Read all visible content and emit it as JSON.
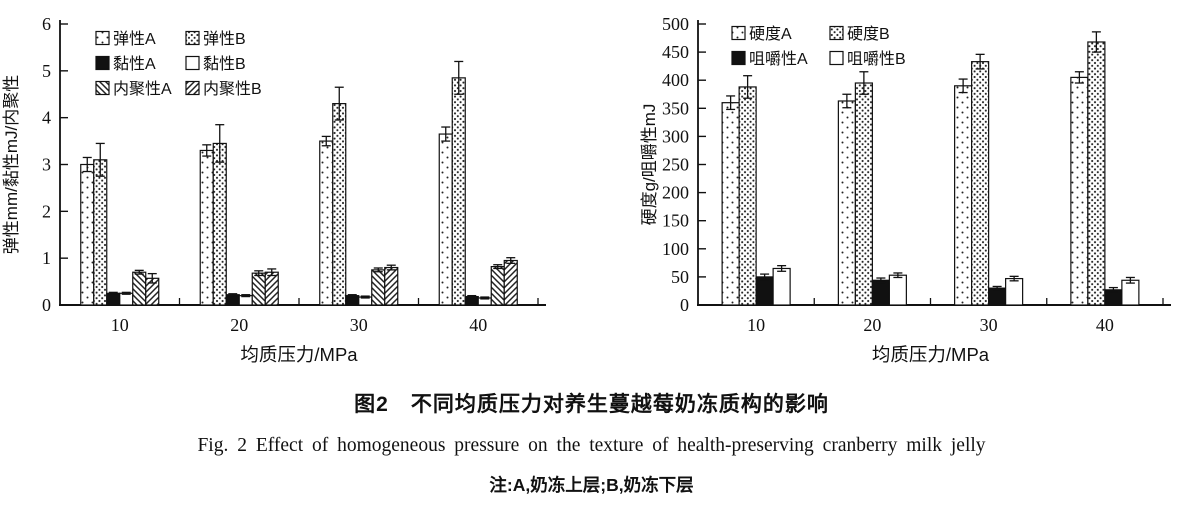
{
  "figure": {
    "caption_zh": "图2　不同均质压力对养生蔓越莓奶冻质构的影响",
    "caption_en": "Fig. 2  Effect of homogeneous pressure on the texture of health-preserving cranberry milk jelly",
    "note": "注:A,奶冻上层;B,奶冻下层"
  },
  "chart_data": [
    {
      "type": "bar",
      "title": "",
      "xlabel": "均质压力/MPa",
      "ylabel": "弹性mm/黏性mJ/内聚性",
      "categories": [
        "10",
        "20",
        "30",
        "40"
      ],
      "ylim": [
        0,
        6
      ],
      "ytick_step": 1,
      "grid": false,
      "legend_position": "upper-left-inside",
      "legend_columns": 2,
      "series": [
        {
          "name": "弹性A",
          "pattern": "sparse-dots",
          "values": [
            3.0,
            3.3,
            3.5,
            3.65
          ],
          "errors": [
            0.15,
            0.12,
            0.1,
            0.15
          ]
        },
        {
          "name": "弹性B",
          "pattern": "dense-dots",
          "values": [
            3.1,
            3.45,
            4.3,
            4.85
          ],
          "errors": [
            0.35,
            0.4,
            0.35,
            0.35
          ]
        },
        {
          "name": "黏性A",
          "pattern": "solid-black",
          "values": [
            0.25,
            0.22,
            0.2,
            0.18
          ],
          "errors": [
            0.02,
            0.02,
            0.02,
            0.02
          ]
        },
        {
          "name": "黏性B",
          "pattern": "white",
          "values": [
            0.25,
            0.2,
            0.17,
            0.15
          ],
          "errors": [
            0.02,
            0.02,
            0.02,
            0.02
          ]
        },
        {
          "name": "内聚性A",
          "pattern": "hatch-back",
          "values": [
            0.7,
            0.68,
            0.75,
            0.82
          ],
          "errors": [
            0.04,
            0.05,
            0.04,
            0.04
          ]
        },
        {
          "name": "内聚性B",
          "pattern": "hatch-fwd",
          "values": [
            0.57,
            0.7,
            0.8,
            0.95
          ],
          "errors": [
            0.1,
            0.07,
            0.05,
            0.06
          ]
        }
      ]
    },
    {
      "type": "bar",
      "title": "",
      "xlabel": "均质压力/MPa",
      "ylabel": "硬度g/咀嚼性mJ",
      "categories": [
        "10",
        "20",
        "30",
        "40"
      ],
      "ylim": [
        0,
        500
      ],
      "ytick_step": 50,
      "grid": false,
      "legend_position": "upper-left-inside",
      "legend_columns": 2,
      "series": [
        {
          "name": "硬度A",
          "pattern": "sparse-dots",
          "values": [
            360,
            363,
            390,
            405
          ],
          "errors": [
            12,
            12,
            12,
            10
          ]
        },
        {
          "name": "硬度B",
          "pattern": "dense-dots",
          "values": [
            388,
            395,
            433,
            468
          ],
          "errors": [
            20,
            20,
            13,
            18
          ]
        },
        {
          "name": "咀嚼性A",
          "pattern": "solid-black",
          "values": [
            50,
            44,
            30,
            27
          ],
          "errors": [
            5,
            4,
            3,
            4
          ]
        },
        {
          "name": "咀嚼性B",
          "pattern": "white",
          "values": [
            65,
            53,
            47,
            44
          ],
          "errors": [
            5,
            4,
            4,
            5
          ]
        }
      ]
    }
  ]
}
